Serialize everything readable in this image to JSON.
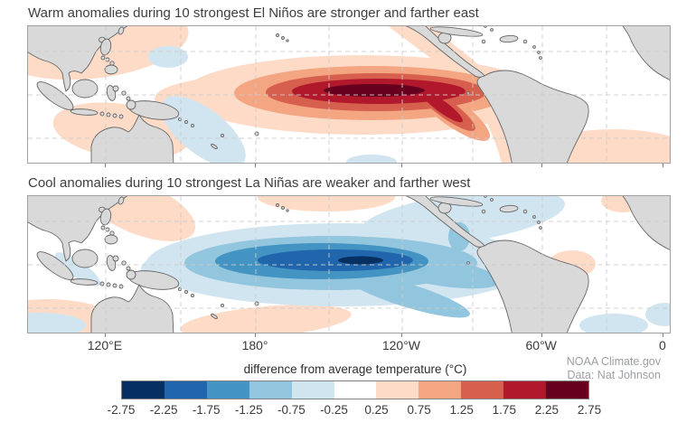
{
  "panels": [
    {
      "title": "Warm anomalies during 10 strongest El Niños are stronger and farther east"
    },
    {
      "title": "Cool anomalies during 10 strongest La Niñas are weaker and farther west"
    }
  ],
  "axis": {
    "labels": [
      {
        "text": "120°E",
        "pos": 0.121
      },
      {
        "text": "180°",
        "pos": 0.355
      },
      {
        "text": "120°W",
        "pos": 0.583
      },
      {
        "text": "60°W",
        "pos": 0.801
      },
      {
        "text": "0",
        "pos": 0.99
      }
    ]
  },
  "colorbar": {
    "title": "difference from average temperature (°C)",
    "ticks": [
      "-2.75",
      "-2.25",
      "-1.75",
      "-1.25",
      "-0.75",
      "-0.25",
      "0.25",
      "0.75",
      "1.25",
      "1.75",
      "2.25",
      "2.75"
    ],
    "colors": [
      "#053061",
      "#2166ac",
      "#4393c3",
      "#92c5de",
      "#d1e5f0",
      "#ffffff",
      "#fddbc7",
      "#f4a582",
      "#d6604d",
      "#b2182b",
      "#67001f"
    ]
  },
  "attribution": {
    "line1": "NOAA Climate.gov",
    "line2": "Data: Nat Johnson"
  },
  "palette": {
    "w1": "#fddbc7",
    "w2": "#f4a582",
    "w3": "#d6604d",
    "w4": "#b2182b",
    "w5": "#67001f",
    "c1": "#d1e5f0",
    "c2": "#92c5de",
    "c3": "#4393c3",
    "c4": "#2166ac",
    "c5": "#053061",
    "land": "#d9d9d9",
    "coast": "#666666",
    "grid": "#cccccc"
  },
  "chart_data": [
    {
      "type": "heatmap",
      "title": "Warm anomalies during 10 strongest El Niños are stronger and farther east",
      "region": "Tropical Pacific basin, roughly 90°E to 0°, about 30°N to 30°S",
      "x_ticks": [
        "120°E",
        "180°",
        "120°W",
        "60°W",
        "0"
      ],
      "units": "°C difference from average temperature",
      "anomaly_sign": "warm",
      "peak_band_c": [
        2.25,
        2.75
      ],
      "peak_location": "equatorial eastern Pacific near 170°W–110°W, with warm tongue extending east to the South American coast",
      "contour_levels_c": [
        0.25,
        0.75,
        1.25,
        1.75,
        2.25,
        2.75
      ],
      "secondary_features": [
        "weak warm anomalies (0.25–0.75) over Southeast Asia / far western Pacific",
        "weak warm patch in subtropical South Atlantic (bottom right)",
        "weak cool anomalies (-0.25 to -0.75) northeast of the Philippines and southeast of New Guinea"
      ]
    },
    {
      "type": "heatmap",
      "title": "Cool anomalies during 10 strongest La Niñas are weaker and farther west",
      "region": "Tropical Pacific basin, roughly 90°E to 0°, about 30°N to 30°S",
      "x_ticks": [
        "120°E",
        "180°",
        "120°W",
        "60°W",
        "0"
      ],
      "units": "°C difference from average temperature",
      "anomaly_sign": "cool",
      "peak_band_c": [
        -2.75,
        -2.25
      ],
      "peak_location": "equatorial central Pacific near 175°E–140°W, centered farther west and weaker than the El Niño composite",
      "contour_levels_c": [
        -2.75,
        -2.25,
        -1.75,
        -1.25,
        -0.75,
        -0.25
      ],
      "secondary_features": [
        "weak warm anomalies (0.25–0.75) in the far western Pacific, south of the cool tongue, and off northeast South America",
        "cool band (-0.25 to -0.75) extending northeast toward Central America and the Caribbean"
      ]
    },
    {
      "type": "table",
      "title": "colorbar scale",
      "categories": [
        "-2.75",
        "-2.25",
        "-1.75",
        "-1.25",
        "-0.75",
        "-0.25",
        "0.25",
        "0.75",
        "1.25",
        "1.75",
        "2.25",
        "2.75"
      ],
      "values": [
        -2.75,
        -2.25,
        -1.75,
        -1.25,
        -0.75,
        -0.25,
        0.25,
        0.75,
        1.25,
        1.75,
        2.25,
        2.75
      ],
      "xlabel": "difference from average temperature (°C)"
    }
  ]
}
